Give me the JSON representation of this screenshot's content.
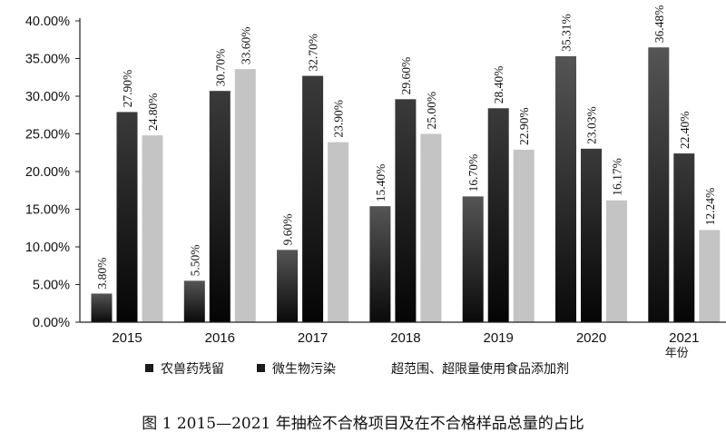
{
  "caption": "图 1   2015—2021 年抽检不合格项目及在不合格样品总量的占比",
  "chart_data": {
    "type": "bar",
    "categories": [
      "2015",
      "2016",
      "2017",
      "2018",
      "2019",
      "2020",
      "2021"
    ],
    "xlabel": "年份",
    "ylabel": "",
    "ylim": [
      0,
      40
    ],
    "yticks": [
      "0.00%",
      "5.00%",
      "10.00%",
      "15.00%",
      "20.00%",
      "25.00%",
      "30.00%",
      "35.00%",
      "40.00%"
    ],
    "grid": false,
    "legend_position": "bottom",
    "series": [
      {
        "name": "农兽药残留",
        "color": "#1a1a1a",
        "values": [
          3.8,
          5.5,
          9.6,
          15.4,
          16.7,
          35.31,
          36.48
        ],
        "labels": [
          "3.80%",
          "5.50%",
          "9.60%",
          "15.40%",
          "16.70%",
          "35.31%",
          "36.48%"
        ]
      },
      {
        "name": "微生物污染",
        "color": "#111111",
        "values": [
          27.9,
          30.7,
          32.7,
          29.6,
          28.4,
          23.03,
          22.4
        ],
        "labels": [
          "27.90%",
          "30.70%",
          "32.70%",
          "29.60%",
          "28.40%",
          "23.03%",
          "22.40%"
        ]
      },
      {
        "name": "超范围、超限量使用食品添加剂",
        "color": "#c4c4c4",
        "values": [
          24.8,
          33.6,
          23.9,
          25.0,
          22.9,
          16.17,
          12.24
        ],
        "labels": [
          "24.80%",
          "33.60%",
          "23.90%",
          "25.00%",
          "22.90%",
          "16.17%",
          "12.24%"
        ]
      }
    ]
  }
}
